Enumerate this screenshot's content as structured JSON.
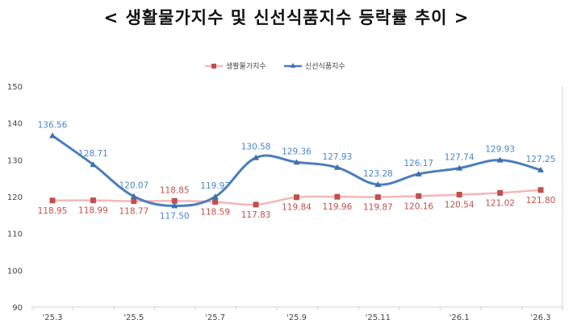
{
  "title": "< 생활물가지수 및 신선식품지수 등락률 추이 >",
  "chart_data": {
    "type": "line",
    "title": "< 생활물가지수 및 신선식품지수 등락률 추이 >",
    "categories": [
      "'25.3",
      "",
      "'25.5",
      "",
      "'25.7",
      "",
      "'25.9",
      "",
      "'25.11",
      "",
      "'26.1",
      "",
      "'26.3"
    ],
    "ylim": [
      90,
      150
    ],
    "yticks": [
      "90",
      "100",
      "110",
      "120",
      "130",
      "140",
      "150"
    ],
    "grid": false,
    "legend": "top-center",
    "series": [
      {
        "name": "생활물가지수",
        "color": "#f2b8b8",
        "marker_color": "#c0504d",
        "label_color": "#c0504d",
        "marker": "square",
        "values": [
          118.95,
          118.99,
          118.77,
          118.85,
          118.59,
          117.83,
          119.84,
          119.96,
          119.87,
          120.16,
          120.54,
          121.02,
          121.8
        ],
        "labels": [
          "118.95",
          "118.99",
          "118.77",
          "118.85",
          "118.59",
          "117.83",
          "119.84",
          "119.96",
          "119.87",
          "120.16",
          "120.54",
          "121.02",
          "121.80"
        ]
      },
      {
        "name": "신선식품지수",
        "color": "#4a7ebb",
        "marker_color": "#3c6fae",
        "label_color": "#4a86c8",
        "marker": "triangle",
        "values": [
          136.56,
          128.71,
          120.07,
          117.5,
          119.97,
          130.58,
          129.36,
          127.93,
          123.28,
          126.17,
          127.74,
          129.93,
          127.25
        ],
        "labels": [
          "136.56",
          "128.71",
          "120.07",
          "117.50",
          "119.97",
          "130.58",
          "129.36",
          "127.93",
          "123.28",
          "126.17",
          "127.74",
          "129.93",
          "127.25"
        ]
      }
    ]
  }
}
